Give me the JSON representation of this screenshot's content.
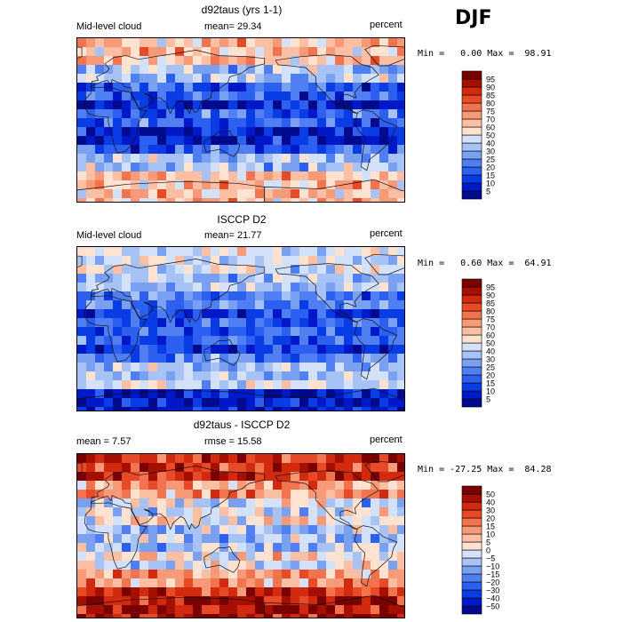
{
  "season": "DJF",
  "panels": [
    {
      "title": "d92taus (yrs 1-1)",
      "left_label": "Mid-level cloud",
      "mid_label": "mean=  29.34",
      "units": "percent",
      "minmax": "Min =   0.00 Max =  98.91",
      "scale": "pos"
    },
    {
      "title": "ISCCP D2",
      "left_label": "Mid-level cloud",
      "mid_label": "mean=  21.77",
      "units": "percent",
      "minmax": "Min =   0.60 Max =  64.91",
      "scale": "pos"
    },
    {
      "title": "d92taus - ISCCP D2",
      "left_label": "mean =    7.57",
      "mid_label": "rmse =   15.58",
      "units": "percent",
      "minmax": "Min = -27.25 Max =  84.28",
      "scale": "diff"
    }
  ],
  "chart_data": [
    {
      "type": "heatmap",
      "title": "d92taus (yrs 1-1)",
      "variable": "Mid-level cloud",
      "units": "percent",
      "mean": 29.34,
      "min": 0.0,
      "max": 98.91,
      "colorbar_levels": [
        5,
        10,
        15,
        20,
        25,
        30,
        40,
        50,
        60,
        70,
        75,
        80,
        85,
        90,
        95
      ]
    },
    {
      "type": "heatmap",
      "title": "ISCCP D2",
      "variable": "Mid-level cloud",
      "units": "percent",
      "mean": 21.77,
      "min": 0.6,
      "max": 64.91,
      "colorbar_levels": [
        5,
        10,
        15,
        20,
        25,
        30,
        40,
        50,
        60,
        70,
        75,
        80,
        85,
        90,
        95
      ]
    },
    {
      "type": "heatmap",
      "title": "d92taus - ISCCP D2",
      "units": "percent",
      "mean": 7.57,
      "rmse": 15.58,
      "min": -27.25,
      "max": 84.28,
      "colorbar_levels": [
        -50,
        -40,
        -30,
        -20,
        -15,
        -10,
        -5,
        0,
        5,
        10,
        15,
        20,
        30,
        40,
        50
      ]
    }
  ],
  "colors": {
    "scale": [
      "#000a8c",
      "#0019c8",
      "#0a3ce6",
      "#2d5ff0",
      "#4f7ff2",
      "#7aa0f2",
      "#a7c2f5",
      "#d3e2fa",
      "#ffe2cf",
      "#fcbfa3",
      "#f89a78",
      "#f2744e",
      "#e84a28",
      "#d22a0e",
      "#a50f00",
      "#7a0000"
    ]
  }
}
